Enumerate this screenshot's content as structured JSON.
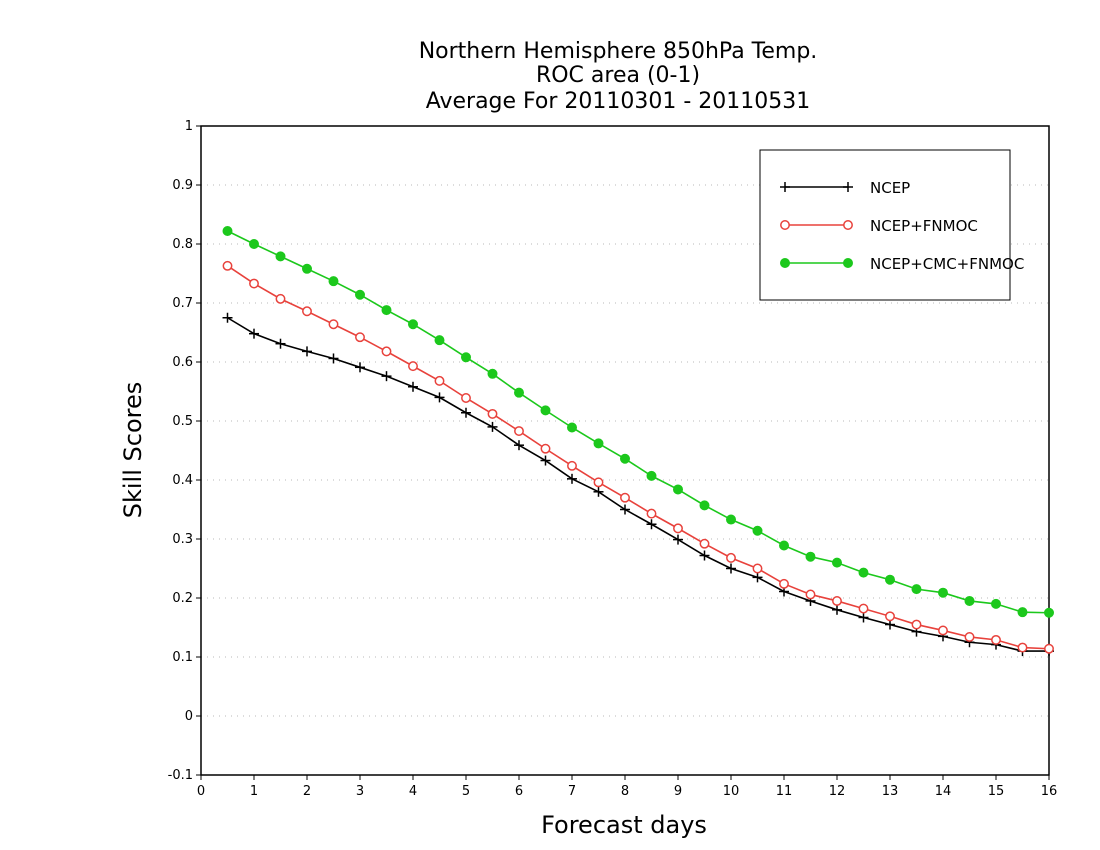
{
  "chart_data": {
    "type": "line",
    "title": [
      "Northern Hemisphere 850hPa Temp.",
      "ROC area (0-1)",
      "Average For 20110301 - 20110531"
    ],
    "xlabel": "Forecast days",
    "ylabel": "Skill Scores",
    "xlim": [
      0,
      16
    ],
    "ylim": [
      -0.1,
      1
    ],
    "xticks": [
      "0",
      "1",
      "2",
      "3",
      "4",
      "5",
      "6",
      "7",
      "8",
      "9",
      "10",
      "11",
      "12",
      "13",
      "14",
      "15",
      "16"
    ],
    "yticks": [
      "-0.1",
      "0",
      "0.1",
      "0.2",
      "0.3",
      "0.4",
      "0.5",
      "0.6",
      "0.7",
      "0.8",
      "0.9",
      "1"
    ],
    "grid": true,
    "legend_position": "top-right",
    "x": [
      0.5,
      1,
      1.5,
      2,
      2.5,
      3,
      3.5,
      4,
      4.5,
      5,
      5.5,
      6,
      6.5,
      7,
      7.5,
      8,
      8.5,
      9,
      9.5,
      10,
      10.5,
      11,
      11.5,
      12,
      12.5,
      13,
      13.5,
      14,
      14.5,
      15,
      15.5,
      16
    ],
    "series": [
      {
        "name": "NCEP",
        "color": "#000000",
        "marker": "plus",
        "values": [
          0.675,
          0.648,
          0.631,
          0.618,
          0.606,
          0.591,
          0.576,
          0.558,
          0.54,
          0.514,
          0.49,
          0.459,
          0.433,
          0.402,
          0.38,
          0.35,
          0.325,
          0.299,
          0.272,
          0.25,
          0.235,
          0.211,
          0.195,
          0.18,
          0.167,
          0.155,
          0.143,
          0.135,
          0.125,
          0.121,
          0.11,
          0.11
        ]
      },
      {
        "name": "NCEP+FNMOC",
        "color": "#e8423c",
        "marker": "open-circle",
        "values": [
          0.763,
          0.733,
          0.707,
          0.686,
          0.664,
          0.642,
          0.618,
          0.593,
          0.568,
          0.539,
          0.512,
          0.483,
          0.453,
          0.424,
          0.396,
          0.37,
          0.343,
          0.318,
          0.292,
          0.268,
          0.25,
          0.224,
          0.206,
          0.195,
          0.182,
          0.169,
          0.155,
          0.145,
          0.134,
          0.129,
          0.116,
          0.114
        ]
      },
      {
        "name": "NCEP+CMC+FNMOC",
        "color": "#1cc81c",
        "marker": "filled-circle",
        "values": [
          0.822,
          0.8,
          0.779,
          0.758,
          0.737,
          0.714,
          0.688,
          0.664,
          0.637,
          0.608,
          0.58,
          0.548,
          0.518,
          0.489,
          0.462,
          0.436,
          0.407,
          0.384,
          0.357,
          0.333,
          0.314,
          0.289,
          0.27,
          0.26,
          0.243,
          0.231,
          0.215,
          0.209,
          0.195,
          0.19,
          0.176,
          0.175
        ]
      }
    ]
  }
}
